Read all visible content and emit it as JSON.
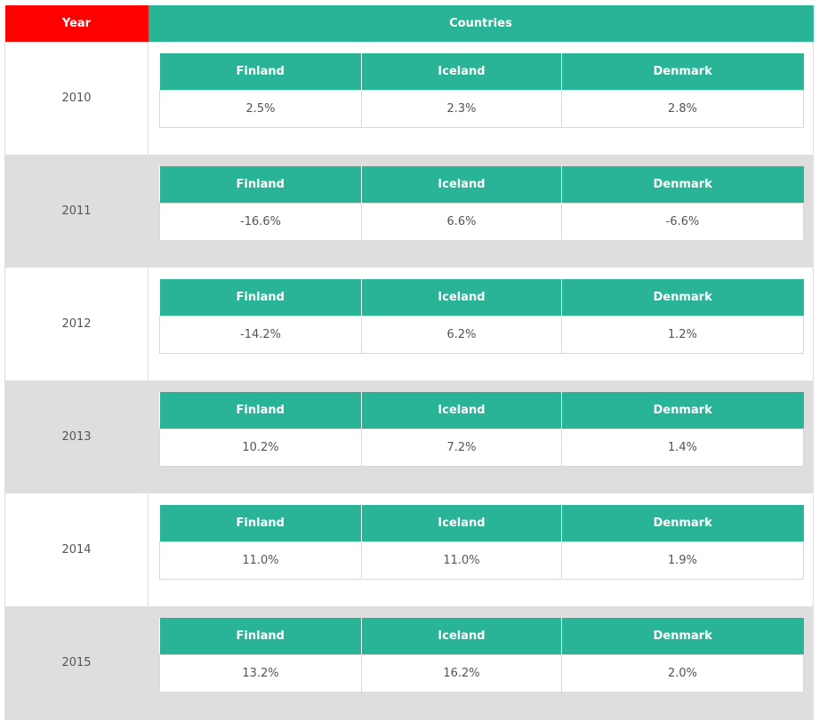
{
  "colors": {
    "year_header_bg": "#ff0000",
    "countries_header_bg": "#29b498",
    "inner_header_bg": "#29b498",
    "row_odd_bg": "#ffffff",
    "row_even_bg": "#dedede"
  },
  "header": {
    "year_label": "Year",
    "countries_label": "Countries"
  },
  "columns": [
    "Finland",
    "Iceland",
    "Denmark"
  ],
  "rows": [
    {
      "year": "2010",
      "values": [
        "2.5%",
        "2.3%",
        "2.8%"
      ]
    },
    {
      "year": "2011",
      "values": [
        "-16.6%",
        "6.6%",
        "-6.6%"
      ]
    },
    {
      "year": "2012",
      "values": [
        "-14.2%",
        "6.2%",
        "1.2%"
      ]
    },
    {
      "year": "2013",
      "values": [
        "10.2%",
        "7.2%",
        "1.4%"
      ]
    },
    {
      "year": "2014",
      "values": [
        "11.0%",
        "11.0%",
        "1.9%"
      ]
    },
    {
      "year": "2015",
      "values": [
        "13.2%",
        "16.2%",
        "2.0%"
      ]
    }
  ]
}
